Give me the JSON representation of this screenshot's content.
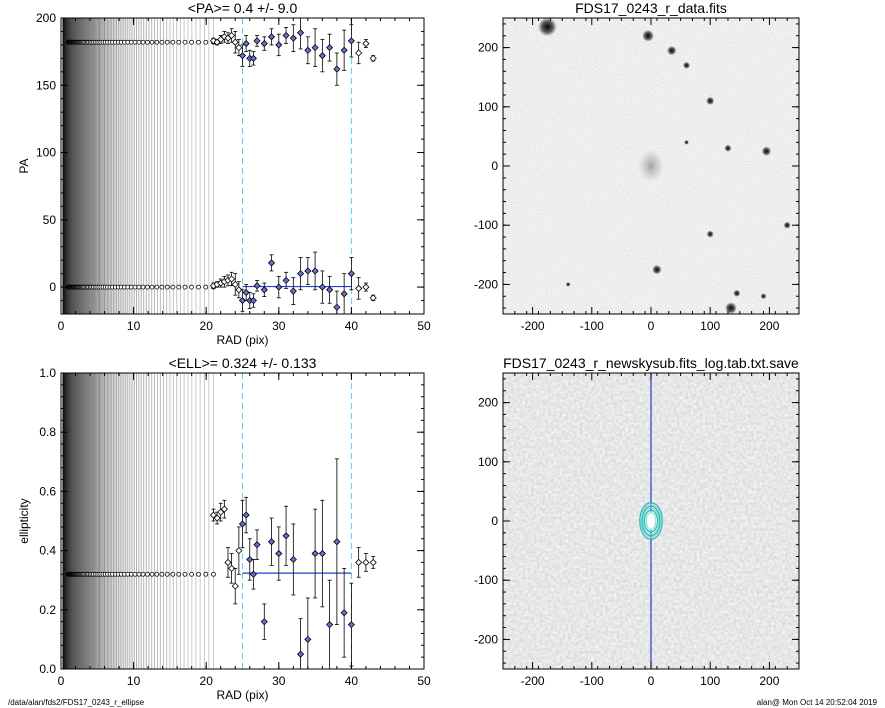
{
  "footer": {
    "path": "/data/alan/fds2/FDS17_0243_r_ellipse",
    "stamp": "alan@  Mon Oct 14 20:52:04 2019"
  },
  "chart_data": [
    {
      "type": "scatter",
      "title": "<PA>=   0.4 +/-   9.0",
      "xlabel": "RAD (pix)",
      "ylabel": "PA",
      "xlim": [
        0,
        50
      ],
      "ylim": [
        -20,
        200
      ],
      "xticks": [
        0,
        10,
        20,
        30,
        40,
        50
      ],
      "yticks": [
        0,
        50,
        100,
        150,
        200
      ],
      "vlines": [
        25,
        40
      ],
      "mean": 0.4,
      "mean_range": [
        25,
        40
      ],
      "series": [
        {
          "x": [
            21.0,
            21.5,
            22.0,
            22.5,
            23.0,
            23.5,
            24.0,
            24.5,
            25.0,
            25.5,
            26.0,
            26.5,
            27.0,
            28.0,
            29.0,
            30.0,
            31.0,
            32.0,
            33.0,
            34.0,
            35.0,
            36.0,
            37.0,
            38.0,
            39.0,
            40.0,
            41.0,
            42.0,
            43.0
          ],
          "y": [
            183,
            182,
            184,
            186,
            185,
            187,
            182,
            178,
            172,
            181,
            170,
            170,
            183,
            181,
            186,
            180,
            187,
            185,
            189,
            176,
            178,
            172,
            178,
            162,
            176,
            183,
            174,
            181,
            170
          ],
          "err": [
            2,
            2,
            3,
            4,
            4,
            5,
            8,
            6,
            8,
            6,
            6,
            5,
            4,
            5,
            6,
            8,
            6,
            10,
            12,
            10,
            14,
            12,
            10,
            12,
            15,
            12,
            8,
            3,
            2
          ]
        },
        {
          "x": [
            21.0,
            21.5,
            22.0,
            22.5,
            23.0,
            23.5,
            24.0,
            24.5,
            25.0,
            25.5,
            26.0,
            26.5,
            27.0,
            28.0,
            29.0,
            30.0,
            31.0,
            32.0,
            33.0,
            34.0,
            35.0,
            36.0,
            37.0,
            38.0,
            39.0,
            40.0,
            41.0,
            42.0,
            43.0
          ],
          "y": [
            1,
            2,
            3,
            4,
            5,
            6,
            2,
            -2,
            -10,
            -4,
            -10,
            -10,
            1,
            -2,
            18,
            0,
            5,
            -3,
            10,
            12,
            12,
            0,
            -2,
            -15,
            -5,
            10,
            -1,
            0,
            -8
          ],
          "err": [
            2,
            2,
            3,
            4,
            4,
            5,
            8,
            6,
            8,
            6,
            6,
            5,
            4,
            5,
            6,
            8,
            6,
            10,
            12,
            10,
            14,
            12,
            10,
            12,
            15,
            12,
            8,
            3,
            2
          ]
        }
      ]
    },
    {
      "type": "image",
      "title": "FDS17_0243_r_data.fits",
      "xlim": [
        -250,
        250
      ],
      "ylim": [
        -250,
        250
      ],
      "xticks": [
        -200,
        -100,
        0,
        100,
        200
      ],
      "yticks": [
        -200,
        -100,
        0,
        100,
        200
      ],
      "sources": [
        {
          "x": -175,
          "y": 235,
          "r": 16
        },
        {
          "x": -5,
          "y": 220,
          "r": 10
        },
        {
          "x": 35,
          "y": 195,
          "r": 8
        },
        {
          "x": 60,
          "y": 170,
          "r": 6
        },
        {
          "x": 100,
          "y": 110,
          "r": 7
        },
        {
          "x": 130,
          "y": 30,
          "r": 6
        },
        {
          "x": 195,
          "y": 25,
          "r": 8
        },
        {
          "x": 100,
          "y": -115,
          "r": 6
        },
        {
          "x": 10,
          "y": -175,
          "r": 8
        },
        {
          "x": 145,
          "y": -215,
          "r": 6
        },
        {
          "x": 230,
          "y": -100,
          "r": 6
        },
        {
          "x": 135,
          "y": -240,
          "r": 10
        },
        {
          "x": 190,
          "y": -220,
          "r": 5
        },
        {
          "x": -140,
          "y": -200,
          "r": 4
        },
        {
          "x": 60,
          "y": 40,
          "r": 4
        }
      ],
      "galaxy": {
        "x": 0,
        "y": 0,
        "rx": 22,
        "ry": 28
      }
    },
    {
      "type": "scatter",
      "title": "<ELL>= 0.324 +/-  0.133",
      "xlabel": "RAD (pix)",
      "ylabel": "ellipticity",
      "xlim": [
        0,
        50
      ],
      "ylim": [
        0,
        1
      ],
      "xticks": [
        0,
        10,
        20,
        30,
        40,
        50
      ],
      "yticks": [
        0.0,
        0.2,
        0.4,
        0.6,
        0.8,
        1.0
      ],
      "vlines": [
        25,
        40
      ],
      "mean": 0.324,
      "mean_range": [
        25,
        40
      ],
      "series": [
        {
          "x": [
            21.0,
            21.5,
            22.0,
            22.5,
            23.0,
            23.5,
            24.0,
            24.5,
            25.0,
            25.5,
            26.0,
            26.5,
            27.0,
            28.0,
            29.0,
            30.0,
            31.0,
            32.0,
            33.0,
            34.0,
            35.0,
            36.0,
            37.0,
            38.0,
            39.0,
            40.0,
            41.0,
            42.0,
            43.0
          ],
          "y": [
            0.52,
            0.51,
            0.53,
            0.54,
            0.36,
            0.34,
            0.28,
            0.4,
            0.49,
            0.52,
            0.37,
            0.32,
            0.42,
            0.16,
            0.43,
            0.39,
            0.45,
            0.37,
            0.05,
            0.1,
            0.39,
            0.39,
            0.15,
            0.43,
            0.19,
            0.15,
            0.36,
            0.36,
            0.36
          ],
          "err": [
            0.02,
            0.02,
            0.03,
            0.03,
            0.05,
            0.05,
            0.06,
            0.08,
            0.08,
            0.06,
            0.07,
            0.05,
            0.05,
            0.06,
            0.08,
            0.09,
            0.1,
            0.12,
            0.12,
            0.14,
            0.15,
            0.18,
            0.15,
            0.28,
            0.15,
            0.14,
            0.05,
            0.03,
            0.02
          ]
        }
      ]
    },
    {
      "type": "image",
      "title": "FDS17_0243_r_newskysub.fits_log.tab.txt.save",
      "xlim": [
        -250,
        250
      ],
      "ylim": [
        -250,
        250
      ],
      "xticks": [
        -200,
        -100,
        0,
        100,
        200
      ],
      "yticks": [
        -200,
        -100,
        0,
        100,
        200
      ],
      "vline": 0,
      "ellipses": [
        {
          "rx": 8,
          "ry": 14
        },
        {
          "rx": 11,
          "ry": 18
        },
        {
          "rx": 13,
          "ry": 22
        },
        {
          "rx": 15,
          "ry": 25
        },
        {
          "rx": 17,
          "ry": 28
        },
        {
          "rx": 19,
          "ry": 31
        }
      ]
    }
  ]
}
